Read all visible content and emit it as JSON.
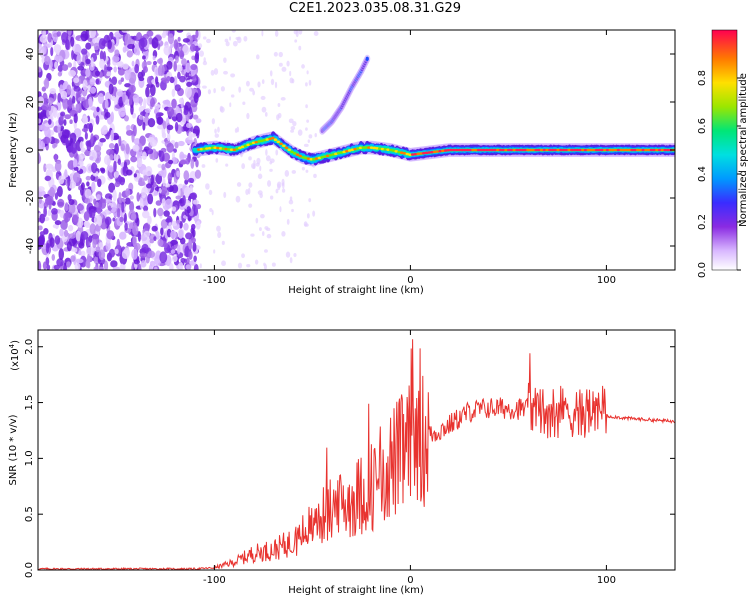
{
  "title": "C2E1.2023.035.08.31.G29",
  "chart_data": [
    {
      "type": "heatmap",
      "xlabel": "Height of straight line (km)",
      "ylabel": "Frequency (Hz)",
      "xlim": [
        -190,
        135
      ],
      "ylim": [
        -50,
        50
      ],
      "xticks": [
        -100,
        0,
        100
      ],
      "yticks": [
        -40,
        -20,
        0,
        20,
        40
      ],
      "colorbar": {
        "label": "Normalized spectral amplitude",
        "range": [
          0,
          1
        ],
        "ticks": [
          "0.0",
          "0.2",
          "0.4",
          "0.6",
          "0.8"
        ]
      },
      "ridge": {
        "description_points_x": [
          -110,
          -100,
          -90,
          -80,
          -70,
          -65,
          -60,
          -55,
          -50,
          -45,
          -40,
          -35,
          -30,
          -25,
          -20,
          -10,
          0,
          10,
          20,
          40,
          60,
          80,
          100,
          135
        ],
        "frequency_y": [
          0,
          1,
          0,
          3,
          5,
          2,
          -1,
          -3,
          -4,
          -3,
          -2,
          -1,
          0,
          1,
          1,
          0,
          -2,
          -1,
          0,
          0,
          0,
          0,
          0,
          0
        ]
      },
      "harmonic_trace": {
        "x": [
          -45,
          -40,
          -35,
          -30,
          -25,
          -22
        ],
        "frequency_y": [
          8,
          12,
          18,
          26,
          33,
          38
        ]
      }
    },
    {
      "type": "line",
      "xlabel": "Height of straight line (km)",
      "ylabel": "SNR (10 * v/v)",
      "yunit_multiplier": "(x10",
      "yunit_exponent": "4",
      "yunit_close": ")",
      "xlim": [
        -190,
        135
      ],
      "ylim": [
        0,
        2.15
      ],
      "xticks": [
        -100,
        0,
        100
      ],
      "yticks": [
        "0.0",
        "0.5",
        "1.0",
        "1.5",
        "2.0"
      ],
      "series": [
        {
          "color": "#e8332f",
          "envelope_x": [
            -190,
            -110,
            -100,
            -90,
            -80,
            -70,
            -60,
            -50,
            -40,
            -30,
            -20,
            -10,
            0,
            10,
            20,
            30,
            40,
            50,
            60,
            70,
            80,
            90,
            100,
            110,
            135
          ],
          "envelope_y": [
            0.01,
            0.01,
            0.02,
            0.07,
            0.15,
            0.18,
            0.25,
            0.4,
            0.55,
            0.62,
            0.75,
            0.95,
            1.1,
            1.2,
            1.3,
            1.42,
            1.45,
            1.45,
            1.44,
            1.42,
            1.42,
            1.42,
            1.38,
            1.36,
            1.33
          ]
        }
      ]
    }
  ]
}
